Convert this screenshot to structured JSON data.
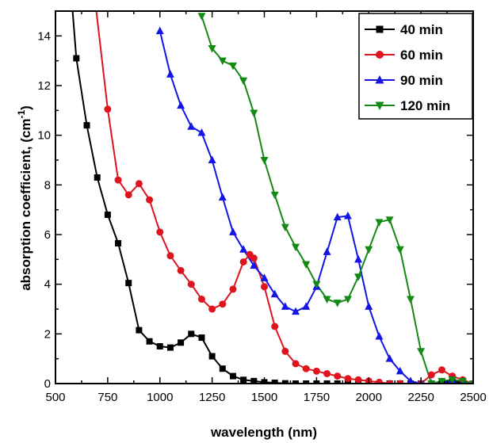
{
  "chart_data": {
    "type": "line",
    "xlabel": "wavelength (nm)",
    "ylabel": "absorption coefficient, (cm",
    "ylabel_sup": "-1",
    "ylabel_close": ")",
    "xlim": [
      500,
      2500
    ],
    "ylim": [
      0,
      15
    ],
    "x_ticks": [
      500,
      750,
      1000,
      1250,
      1500,
      1750,
      2000,
      2250,
      2500
    ],
    "y_ticks": [
      0,
      2,
      4,
      6,
      8,
      10,
      12,
      14
    ],
    "grid": false,
    "legend_position": "top-right",
    "series": [
      {
        "name": "40 min",
        "color": "#000000",
        "marker": "square",
        "points": [
          [
            580,
            15.2
          ],
          [
            600,
            13.1
          ],
          [
            650,
            10.4
          ],
          [
            700,
            8.3
          ],
          [
            750,
            6.8
          ],
          [
            800,
            5.65
          ],
          [
            850,
            4.05
          ],
          [
            900,
            2.15
          ],
          [
            950,
            1.7
          ],
          [
            1000,
            1.5
          ],
          [
            1050,
            1.45
          ],
          [
            1100,
            1.65
          ],
          [
            1150,
            2.0
          ],
          [
            1200,
            1.85
          ],
          [
            1250,
            1.1
          ],
          [
            1300,
            0.6
          ],
          [
            1350,
            0.3
          ],
          [
            1400,
            0.15
          ],
          [
            1450,
            0.1
          ],
          [
            1500,
            0.05
          ],
          [
            1550,
            0.03
          ],
          [
            1600,
            0.01
          ],
          [
            1650,
            0.0
          ],
          [
            1700,
            0.0
          ],
          [
            1750,
            0.0
          ],
          [
            1800,
            0.0
          ],
          [
            1850,
            0.0
          ],
          [
            1900,
            0.0
          ],
          [
            1950,
            0.0
          ],
          [
            2000,
            0.0
          ],
          [
            2050,
            0.0
          ],
          [
            2100,
            0.0
          ],
          [
            2150,
            0.0
          ],
          [
            2200,
            0.0
          ],
          [
            2250,
            0.0
          ],
          [
            2300,
            0.0
          ],
          [
            2350,
            0.05
          ],
          [
            2400,
            0.08
          ],
          [
            2450,
            0.05
          ],
          [
            2500,
            0.0
          ]
        ]
      },
      {
        "name": "60 min",
        "color": "#e0141e",
        "marker": "circle",
        "points": [
          [
            690,
            15.4
          ],
          [
            750,
            11.05
          ],
          [
            800,
            8.2
          ],
          [
            850,
            7.6
          ],
          [
            900,
            8.05
          ],
          [
            950,
            7.4
          ],
          [
            1000,
            6.1
          ],
          [
            1050,
            5.15
          ],
          [
            1100,
            4.55
          ],
          [
            1150,
            4.0
          ],
          [
            1200,
            3.4
          ],
          [
            1250,
            3.0
          ],
          [
            1300,
            3.2
          ],
          [
            1350,
            3.8
          ],
          [
            1400,
            4.9
          ],
          [
            1430,
            5.2
          ],
          [
            1450,
            5.05
          ],
          [
            1500,
            3.9
          ],
          [
            1550,
            2.3
          ],
          [
            1600,
            1.3
          ],
          [
            1650,
            0.8
          ],
          [
            1700,
            0.6
          ],
          [
            1750,
            0.5
          ],
          [
            1800,
            0.4
          ],
          [
            1850,
            0.3
          ],
          [
            1900,
            0.2
          ],
          [
            1950,
            0.15
          ],
          [
            2000,
            0.1
          ],
          [
            2050,
            0.05
          ],
          [
            2100,
            0.0
          ],
          [
            2150,
            0.0
          ],
          [
            2200,
            0.0
          ],
          [
            2250,
            0.0
          ],
          [
            2300,
            0.35
          ],
          [
            2350,
            0.55
          ],
          [
            2400,
            0.3
          ],
          [
            2450,
            0.15
          ],
          [
            2500,
            0.0
          ]
        ]
      },
      {
        "name": "90 min",
        "color": "#1414e6",
        "marker": "triangle-up",
        "points": [
          [
            1000,
            14.2
          ],
          [
            1050,
            12.45
          ],
          [
            1100,
            11.2
          ],
          [
            1150,
            10.35
          ],
          [
            1200,
            10.1
          ],
          [
            1250,
            9.0
          ],
          [
            1300,
            7.5
          ],
          [
            1350,
            6.1
          ],
          [
            1400,
            5.4
          ],
          [
            1450,
            4.75
          ],
          [
            1500,
            4.25
          ],
          [
            1550,
            3.6
          ],
          [
            1600,
            3.1
          ],
          [
            1650,
            2.9
          ],
          [
            1700,
            3.1
          ],
          [
            1750,
            3.9
          ],
          [
            1800,
            5.3
          ],
          [
            1850,
            6.7
          ],
          [
            1900,
            6.75
          ],
          [
            1950,
            5.0
          ],
          [
            2000,
            3.1
          ],
          [
            2050,
            1.9
          ],
          [
            2100,
            1.0
          ],
          [
            2150,
            0.5
          ],
          [
            2200,
            0.1
          ],
          [
            2250,
            0.0
          ],
          [
            2300,
            0.0
          ],
          [
            2350,
            0.0
          ],
          [
            2400,
            0.15
          ],
          [
            2450,
            0.1
          ],
          [
            2500,
            0.0
          ]
        ]
      },
      {
        "name": "120 min",
        "color": "#138a13",
        "marker": "triangle-down",
        "points": [
          [
            1200,
            14.8
          ],
          [
            1250,
            13.5
          ],
          [
            1300,
            13.0
          ],
          [
            1350,
            12.8
          ],
          [
            1400,
            12.2
          ],
          [
            1450,
            10.9
          ],
          [
            1500,
            9.0
          ],
          [
            1550,
            7.6
          ],
          [
            1600,
            6.3
          ],
          [
            1650,
            5.5
          ],
          [
            1700,
            4.8
          ],
          [
            1750,
            4.0
          ],
          [
            1800,
            3.4
          ],
          [
            1850,
            3.25
          ],
          [
            1900,
            3.4
          ],
          [
            1950,
            4.3
          ],
          [
            2000,
            5.4
          ],
          [
            2050,
            6.5
          ],
          [
            2100,
            6.6
          ],
          [
            2150,
            5.4
          ],
          [
            2200,
            3.4
          ],
          [
            2250,
            1.3
          ],
          [
            2300,
            0.0
          ],
          [
            2350,
            0.1
          ],
          [
            2400,
            0.15
          ],
          [
            2450,
            0.1
          ],
          [
            2500,
            0.0
          ]
        ]
      }
    ]
  }
}
